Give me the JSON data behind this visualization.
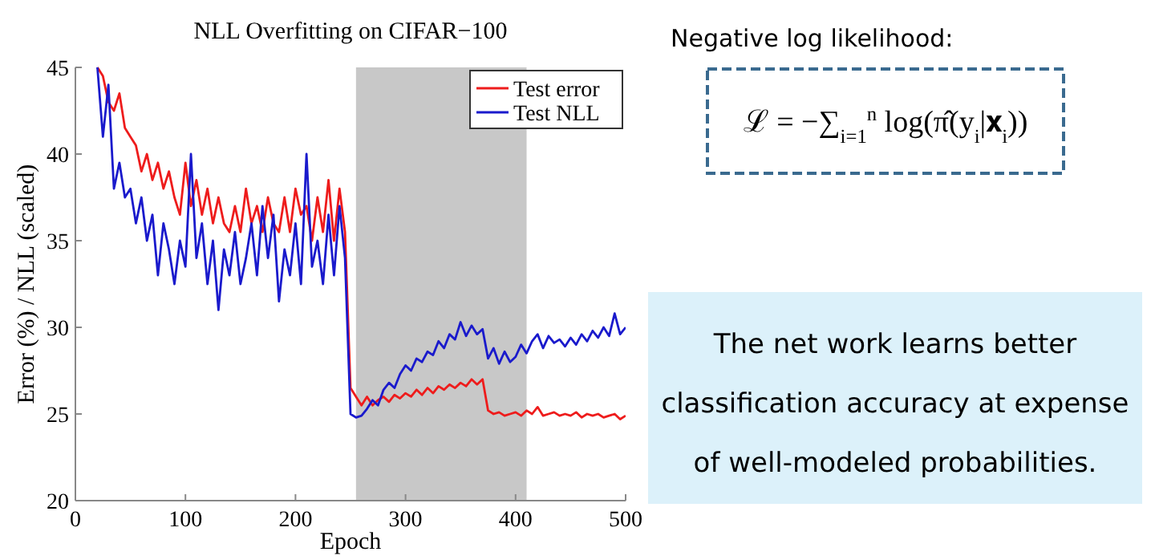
{
  "chart_data": {
    "type": "line",
    "title": "NLL Overfitting on CIFAR−100",
    "xlabel": "Epoch",
    "ylabel": "Error (%) / NLL (scaled)",
    "x": [
      20,
      25,
      30,
      35,
      40,
      45,
      50,
      55,
      60,
      65,
      70,
      75,
      80,
      85,
      90,
      95,
      100,
      105,
      110,
      115,
      120,
      125,
      130,
      135,
      140,
      145,
      150,
      155,
      160,
      165,
      170,
      175,
      180,
      185,
      190,
      195,
      200,
      205,
      210,
      215,
      220,
      225,
      230,
      235,
      240,
      245,
      250,
      255,
      260,
      265,
      270,
      275,
      280,
      285,
      290,
      295,
      300,
      305,
      310,
      315,
      320,
      325,
      330,
      335,
      340,
      345,
      350,
      355,
      360,
      365,
      370,
      375,
      380,
      385,
      390,
      395,
      400,
      405,
      410,
      415,
      420,
      425,
      430,
      435,
      440,
      445,
      450,
      455,
      460,
      465,
      470,
      475,
      480,
      485,
      490,
      495,
      500
    ],
    "series": [
      {
        "name": "Test error",
        "color": "#ee1c1c",
        "values": [
          45,
          44.5,
          43,
          42.5,
          43.5,
          41.5,
          41,
          40.5,
          39,
          40,
          38.5,
          39.5,
          38,
          39,
          37.5,
          36.5,
          39.5,
          37,
          38.5,
          36.5,
          38,
          36,
          37.5,
          36,
          35.5,
          37,
          35.5,
          38,
          36,
          37,
          35.5,
          37.5,
          36,
          35.5,
          37.5,
          35.5,
          38,
          36.5,
          37,
          35,
          37.5,
          35.5,
          38.5,
          35,
          38,
          35.5,
          26.5,
          26,
          25.5,
          26,
          25.5,
          25.8,
          26,
          25.7,
          26.1,
          25.9,
          26.2,
          26,
          26.4,
          26.1,
          26.5,
          26.2,
          26.6,
          26.4,
          26.7,
          26.5,
          26.8,
          26.6,
          27,
          26.7,
          27,
          25.2,
          25,
          25.1,
          24.9,
          25,
          25.1,
          24.9,
          25.2,
          25,
          25.4,
          24.9,
          25,
          25.1,
          24.9,
          25,
          24.9,
          25.1,
          24.8,
          25,
          24.9,
          25,
          24.8,
          24.9,
          25,
          24.7,
          24.9
        ]
      },
      {
        "name": "Test NLL",
        "color": "#1a1acc",
        "values": [
          45,
          41,
          44,
          38,
          39.5,
          37.5,
          38,
          36,
          37.5,
          35,
          36.5,
          33,
          36,
          34.5,
          32.5,
          35,
          33.5,
          40,
          34,
          36,
          32.5,
          35,
          31,
          34.5,
          33,
          35.5,
          32.5,
          34,
          36,
          33,
          37,
          34,
          36.5,
          31.5,
          34.5,
          33,
          36,
          32.5,
          40,
          33.5,
          35,
          32.5,
          36.5,
          33,
          37,
          34,
          25,
          24.8,
          24.9,
          25.3,
          25.8,
          25.5,
          26.4,
          26.8,
          26.5,
          27.3,
          27.8,
          27.5,
          28.2,
          28,
          28.6,
          28.4,
          29.2,
          28.8,
          29.6,
          29.3,
          30.3,
          29.5,
          30.1,
          29.6,
          29.9,
          28.2,
          28.8,
          27.9,
          28.6,
          28,
          28.3,
          29,
          28.5,
          29.2,
          29.6,
          28.8,
          29.5,
          29.1,
          29.3,
          28.9,
          29.4,
          29,
          29.6,
          29.2,
          29.8,
          29.4,
          30,
          29.5,
          30.8,
          29.6,
          30
        ]
      }
    ],
    "xlim": [
      0,
      500
    ],
    "xticks": [
      0,
      100,
      200,
      300,
      400,
      500
    ],
    "ylim": [
      20,
      45
    ],
    "yticks": [
      20,
      25,
      30,
      35,
      40,
      45
    ],
    "bands": [
      {
        "axis": "x",
        "from": 255,
        "to": 410,
        "color": "#c8c8c8"
      }
    ],
    "legend": "top right",
    "grid": false,
    "annotations": [
      "Negative log likelihood:",
      "ℒ = −∑$_{i=1}$$^{n}$ log(π̂(y$_{i}$|𝐱$_{i}$))",
      "The net work learns better classification accuracy at expense of well-modeled probabilities."
    ]
  }
}
